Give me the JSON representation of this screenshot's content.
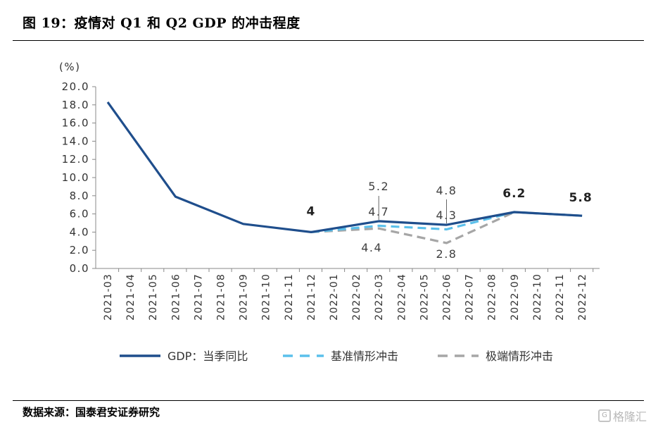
{
  "title": "图 19：疫情对 Q1 和 Q2 GDP 的冲击程度",
  "source": "数据来源：国泰君安证券研究",
  "watermark": "格隆汇",
  "chart_data": {
    "type": "line",
    "unit": "(%)",
    "ylim": [
      0,
      20
    ],
    "y_ticks": [
      "0.0",
      "2.0",
      "4.0",
      "6.0",
      "8.0",
      "10.0",
      "12.0",
      "14.0",
      "16.0",
      "18.0",
      "20.0"
    ],
    "categories": [
      "2021-03",
      "2021-04",
      "2021-05",
      "2021-06",
      "2021-07",
      "2021-08",
      "2021-09",
      "2021-10",
      "2021-11",
      "2021-12",
      "2022-01",
      "2022-02",
      "2022-03",
      "2022-04",
      "2022-05",
      "2022-06",
      "2022-07",
      "2022-08",
      "2022-09",
      "2022-10",
      "2022-11",
      "2022-12"
    ],
    "series": [
      {
        "name": "GDP：当季同比",
        "color": "#1f4e8c",
        "style": "solid",
        "values": [
          18.3,
          null,
          null,
          7.9,
          null,
          null,
          4.9,
          null,
          null,
          4.0,
          null,
          null,
          5.2,
          null,
          null,
          4.8,
          null,
          null,
          6.2,
          null,
          null,
          5.8
        ]
      },
      {
        "name": "基准情形冲击",
        "color": "#5bc0eb",
        "style": "dashed",
        "values": [
          null,
          null,
          null,
          null,
          null,
          null,
          null,
          null,
          null,
          4.0,
          null,
          null,
          4.7,
          null,
          null,
          4.3,
          null,
          null,
          6.2,
          null,
          null,
          5.8
        ]
      },
      {
        "name": "极端情形冲击",
        "color": "#a6a6a6",
        "style": "dashed",
        "values": [
          null,
          null,
          null,
          null,
          null,
          null,
          null,
          null,
          null,
          4.0,
          null,
          null,
          4.4,
          null,
          null,
          2.8,
          null,
          null,
          6.2,
          null,
          null,
          5.8
        ]
      }
    ],
    "annotations": [
      {
        "text": "4",
        "bold": true
      },
      {
        "text": "5.2",
        "bold": false
      },
      {
        "text": "4.7",
        "bold": false
      },
      {
        "text": "4.4",
        "bold": false
      },
      {
        "text": "4.8",
        "bold": false
      },
      {
        "text": "4.3",
        "bold": false
      },
      {
        "text": "2.8",
        "bold": false
      },
      {
        "text": "6.2",
        "bold": true
      },
      {
        "text": "5.8",
        "bold": true
      }
    ],
    "grid": false,
    "legend_position": "bottom"
  }
}
